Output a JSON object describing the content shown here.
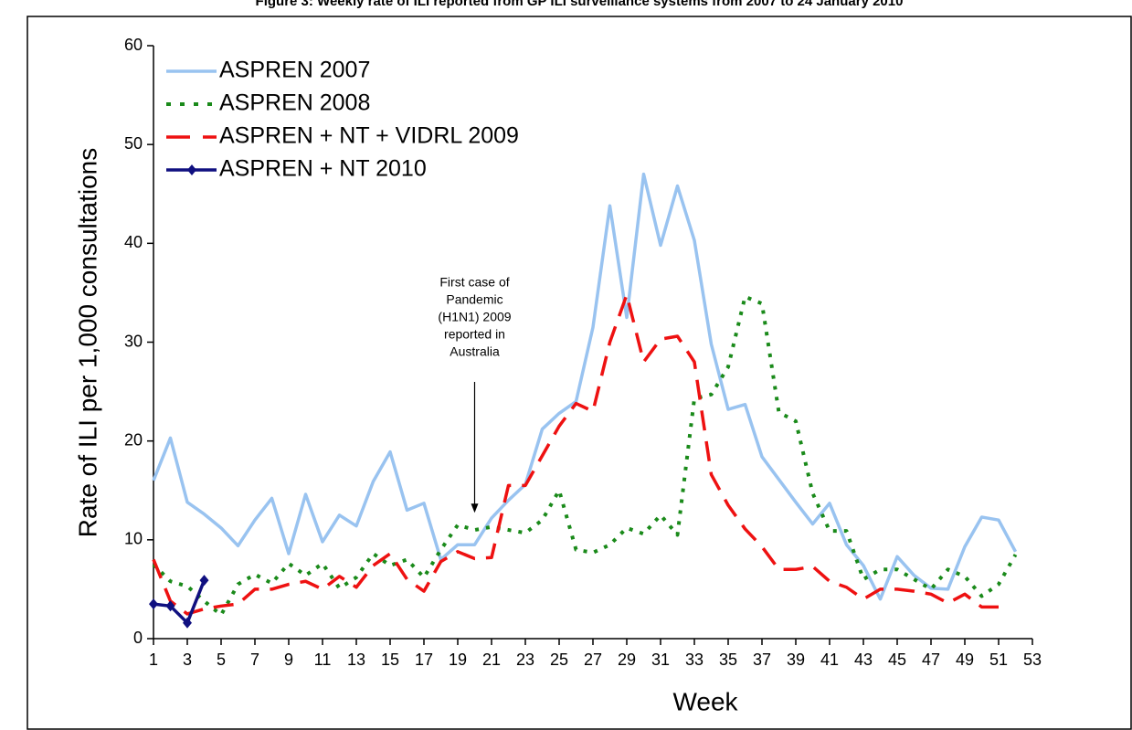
{
  "chart_data": {
    "type": "line",
    "title": "Figure 3: Weekly rate of ILI reported from GP ILI surveillance systems from 2007 to 24 January 2010",
    "x_label": "Week",
    "y_label": "Rate of ILI per 1,000 consultations",
    "annotation": [
      "First case of",
      "Pandemic",
      "(H1N1) 2009",
      "reported in",
      "Australia"
    ],
    "annotation_x": 20,
    "annotation_y": 12,
    "x": [
      1,
      2,
      3,
      4,
      5,
      6,
      7,
      8,
      9,
      10,
      11,
      12,
      13,
      14,
      15,
      16,
      17,
      18,
      19,
      20,
      21,
      22,
      23,
      24,
      25,
      26,
      27,
      28,
      29,
      30,
      31,
      32,
      33,
      34,
      35,
      36,
      37,
      38,
      39,
      40,
      41,
      42,
      43,
      44,
      45,
      46,
      47,
      48,
      49,
      50,
      51,
      52
    ],
    "xlim": [
      1,
      53
    ],
    "xticks": [
      1,
      3,
      5,
      7,
      9,
      11,
      13,
      15,
      17,
      19,
      21,
      23,
      25,
      27,
      29,
      31,
      33,
      35,
      37,
      39,
      41,
      43,
      45,
      47,
      49,
      51,
      53
    ],
    "ylim": [
      0,
      60
    ],
    "yticks": [
      0,
      10,
      20,
      30,
      40,
      50,
      60
    ],
    "legend": "top-left",
    "series": [
      {
        "name": "ASPREN 2007",
        "color": "#99c3f0",
        "style": "solid",
        "values": [
          16,
          20.3,
          13.8,
          12.6,
          11.2,
          9.4,
          12,
          14.2,
          8.6,
          14.6,
          9.8,
          12.5,
          11.4,
          15.9,
          18.9,
          13,
          13.7,
          8,
          9.5,
          9.5,
          12.2,
          14,
          15.6,
          21.2,
          22.8,
          24,
          31.5,
          43.8,
          32.5,
          47,
          39.8,
          45.8,
          40.3,
          29.8,
          23.2,
          23.7,
          18.4,
          16.1,
          13.8,
          11.6,
          13.7,
          9.5,
          7.4,
          4,
          8.3,
          6.4,
          5.1,
          5,
          9.3,
          12.3,
          12,
          8.8
        ]
      },
      {
        "name": "ASPREN 2008",
        "color": "#1a8a1a",
        "style": "dotted",
        "values": [
          7.5,
          5.8,
          5.3,
          3.8,
          2.4,
          5.5,
          6.5,
          5.6,
          7.6,
          6.4,
          7.6,
          5.1,
          6.2,
          8.6,
          7.4,
          8,
          6.2,
          9,
          11.5,
          11,
          11.3,
          11,
          10.7,
          12,
          15,
          9,
          8.7,
          9.5,
          11.2,
          10.6,
          12.5,
          10.5,
          24.3,
          24.7,
          27.5,
          34.6,
          33.9,
          22.9,
          22,
          14.7,
          10.9,
          10.9,
          6,
          7,
          7,
          6,
          5,
          7,
          6.3,
          4.3,
          5.5,
          8.5
        ]
      },
      {
        "name": "ASPREN + NT + VIDRL 2009",
        "color": "#ee1111",
        "style": "dashed",
        "values": [
          8,
          3.8,
          2.5,
          3,
          3.3,
          3.5,
          5,
          5,
          5.5,
          5.8,
          5,
          6.3,
          5.2,
          7.4,
          8.6,
          6,
          4.8,
          7.8,
          8.8,
          8.1,
          8.2,
          15.5,
          15.5,
          18.5,
          21.5,
          23.8,
          23,
          30,
          34.8,
          28,
          30.3,
          30.6,
          28,
          16.6,
          13.5,
          11.1,
          9.3,
          7,
          7,
          7.3,
          5.8,
          5.2,
          4,
          5,
          5,
          4.8,
          4.5,
          3.6,
          4.5,
          3.2,
          3.2,
          null
        ]
      },
      {
        "name": "ASPREN + NT 2010",
        "color": "#101080",
        "style": "marker",
        "values": [
          3.5,
          3.3,
          1.6,
          5.9,
          null,
          null,
          null,
          null,
          null,
          null,
          null,
          null,
          null,
          null,
          null,
          null,
          null,
          null,
          null,
          null,
          null,
          null,
          null,
          null,
          null,
          null,
          null,
          null,
          null,
          null,
          null,
          null,
          null,
          null,
          null,
          null,
          null,
          null,
          null,
          null,
          null,
          null,
          null,
          null,
          null,
          null,
          null,
          null,
          null,
          null,
          null,
          null
        ]
      }
    ]
  }
}
